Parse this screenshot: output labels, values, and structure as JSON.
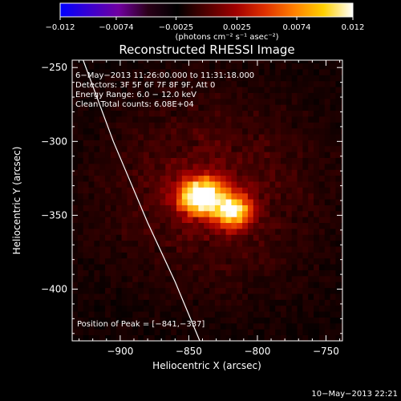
{
  "chart_data": {
    "type": "heatmap",
    "title": "Reconstructed RHESSI Image",
    "xlabel": "Heliocentric X (arcsec)",
    "ylabel": "Heliocentric Y (arcsec)",
    "xlim": [
      -935,
      -738
    ],
    "ylim": [
      -435,
      -245
    ],
    "xticks": [
      -900,
      -850,
      -800,
      -750
    ],
    "yticks": [
      -250,
      -300,
      -350,
      -400
    ],
    "xtick_labels": [
      "−900",
      "−850",
      "−800",
      "−750"
    ],
    "ytick_labels": [
      "−250",
      "−300",
      "−350",
      "−400"
    ],
    "colorbar": {
      "min": -0.012,
      "max": 0.012,
      "ticks": [
        -0.012,
        -0.0074,
        -0.0025,
        0.0025,
        0.0074,
        0.012
      ],
      "tick_labels": [
        "−0.012",
        "−0.0074",
        "−0.0025",
        "0.0025",
        "0.0074",
        "0.012"
      ],
      "units_label": "(photons cm⁻² s⁻¹ asec⁻²)",
      "colors": [
        "#0000ff",
        "#3a00d0",
        "#7000a0",
        "#2a0018",
        "#000000",
        "#500000",
        "#a00000",
        "#e03000",
        "#ff8000",
        "#ffd000",
        "#ffffff"
      ]
    },
    "annotations": [
      "6−May−2013 11:26:00.000 to 11:31:18.000",
      "Detectors: 3F 5F 6F 7F 8F 9F, Att 0",
      "Energy Range: 6.0 − 12.0 keV",
      "Clean    Total counts: 6.08E+04"
    ],
    "peak_label": "Position of Peak = [−841,−337]",
    "peak": {
      "x": -841,
      "y": -337
    },
    "sources": [
      {
        "x": -841,
        "y": -337,
        "sigma_x": 12,
        "sigma_y": 9,
        "peak": 0.012
      },
      {
        "x": -817,
        "y": -347,
        "sigma_x": 9,
        "sigma_y": 8,
        "peak": 0.0095
      }
    ],
    "limb_curve": [
      [
        -927,
        -245
      ],
      [
        -905,
        -300
      ],
      [
        -880,
        -355
      ],
      [
        -860,
        -395
      ],
      [
        -842,
        -435
      ]
    ]
  },
  "footer_timestamp": "10−May−2013 22:21"
}
